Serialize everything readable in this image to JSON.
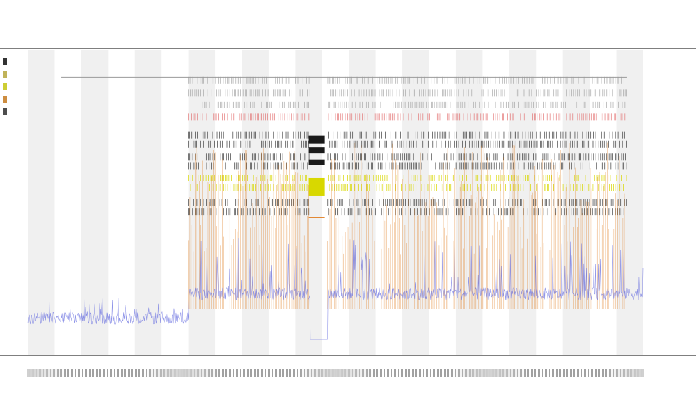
{
  "colors": {
    "axis": "#555555",
    "band": "#f0f0f0",
    "gray_lines": "#9a9a9a",
    "black_ticks": "#1a1a1a",
    "red_ticks": "#e06060",
    "yellow": "#d8d800",
    "orange": "#e07a1a",
    "blue": "#6a70e0",
    "legend": [
      "#000000",
      "#b0a030",
      "#c0c000",
      "#c07010",
      "#202020"
    ]
  },
  "chart_data": {
    "type": "line",
    "title": "",
    "subtitle_lines": [
      "",
      ""
    ],
    "xlabel": "",
    "ylabel": "",
    "grid": false,
    "legend_position": "top-left",
    "xlim": [
      0,
      23
    ],
    "ylim": [
      0,
      1
    ],
    "shaded_bands": [
      [
        0,
        1
      ],
      [
        2,
        3
      ],
      [
        4,
        5
      ],
      [
        6,
        7
      ],
      [
        8,
        9
      ],
      [
        10,
        11
      ],
      [
        12,
        13
      ],
      [
        14,
        15
      ],
      [
        16,
        17
      ],
      [
        18,
        19
      ],
      [
        20,
        21
      ],
      [
        22,
        23
      ]
    ],
    "gap_region": [
      10.55,
      11.2
    ],
    "marked_block": [
      10.5,
      11.1
    ],
    "series": [
      {
        "kind": "line",
        "color": "#6a70e0",
        "level": 0.12,
        "active_level": 0.2
      },
      {
        "kind": "vlines",
        "color": "#e07a1a",
        "max": 0.55
      },
      {
        "kind": "tick_rows",
        "color": "#9a9a9a",
        "rows": [
          0.9,
          0.86,
          0.82
        ]
      },
      {
        "kind": "tick_rows",
        "color": "#e06060",
        "rows": [
          0.78
        ]
      },
      {
        "kind": "tick_rows",
        "color": "#1a1a1a",
        "rows": [
          0.72,
          0.69,
          0.65,
          0.62
        ]
      },
      {
        "kind": "tick_rows",
        "color": "#d8d800",
        "rows": [
          0.58,
          0.55
        ]
      },
      {
        "kind": "tick_rows",
        "color": "#1a1a1a",
        "rows": [
          0.5,
          0.47
        ]
      }
    ],
    "row_labels": [
      "",
      ""
    ],
    "x_tick_labels": []
  }
}
